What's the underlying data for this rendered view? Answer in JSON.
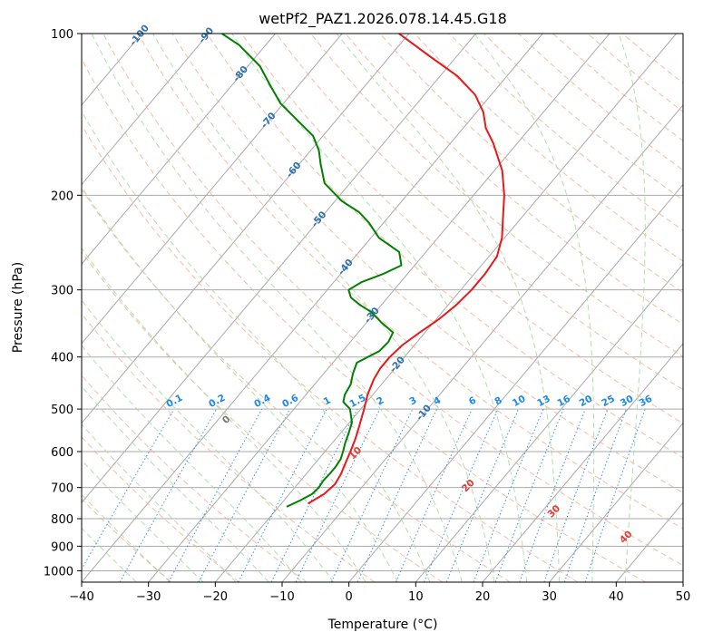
{
  "chart_data": {
    "type": "line",
    "diagram": "skew-t log-p",
    "title": "wetPf2_PAZ1.2026.078.14.45.G18",
    "xlabel": "Temperature (°C)",
    "ylabel": "Pressure (hPa)",
    "xlim": [
      -40,
      50
    ],
    "ylim": [
      1050,
      100
    ],
    "yscale": "log",
    "x_ticks": [
      "−40",
      "−30",
      "−20",
      "−10",
      "0",
      "10",
      "20",
      "30",
      "40",
      "50"
    ],
    "y_ticks": [
      "100",
      "200",
      "300",
      "400",
      "500",
      "600",
      "700",
      "800",
      "900",
      "1000"
    ],
    "y_tick_values": [
      100,
      200,
      300,
      400,
      500,
      600,
      700,
      800,
      900,
      1000
    ],
    "grid": true,
    "colors": {
      "temperature": "#e31a1c",
      "dewpoint": "#008000",
      "isotherm": "#aaaaaa",
      "dry_adiabat": "#f4a582",
      "moist_adiabat": "#a6d8a0",
      "mixing_ratio": "#1e88e5",
      "moist_label": "#e53935",
      "isotherm_label": "#2a6fb0",
      "zero_label": "#777777"
    },
    "series": [
      {
        "key": "temperature",
        "points": [
          [
            750,
            -16.0
          ],
          [
            720,
            -14.8
          ],
          [
            690,
            -14.4
          ],
          [
            660,
            -14.8
          ],
          [
            630,
            -15.5
          ],
          [
            600,
            -16.2
          ],
          [
            570,
            -17.0
          ],
          [
            540,
            -18.0
          ],
          [
            500,
            -19.5
          ],
          [
            470,
            -20.8
          ],
          [
            440,
            -21.8
          ],
          [
            420,
            -22.2
          ],
          [
            400,
            -22.2
          ],
          [
            380,
            -21.8
          ],
          [
            360,
            -20.8
          ],
          [
            340,
            -19.6
          ],
          [
            320,
            -18.8
          ],
          [
            300,
            -18.4
          ],
          [
            280,
            -18.4
          ],
          [
            260,
            -18.8
          ],
          [
            240,
            -20.4
          ],
          [
            220,
            -22.8
          ],
          [
            200,
            -25.4
          ],
          [
            180,
            -28.8
          ],
          [
            160,
            -33.6
          ],
          [
            150,
            -36.6
          ],
          [
            140,
            -39.0
          ],
          [
            130,
            -42.4
          ],
          [
            120,
            -47.4
          ],
          [
            110,
            -54.2
          ],
          [
            100,
            -61.5
          ]
        ]
      },
      {
        "key": "dewpoint",
        "points": [
          [
            760,
            -18.8
          ],
          [
            740,
            -17.6
          ],
          [
            720,
            -16.6
          ],
          [
            700,
            -16.4
          ],
          [
            680,
            -16.6
          ],
          [
            660,
            -16.5
          ],
          [
            640,
            -16.5
          ],
          [
            620,
            -16.7
          ],
          [
            600,
            -17.3
          ],
          [
            580,
            -18.0
          ],
          [
            560,
            -18.6
          ],
          [
            530,
            -19.6
          ],
          [
            500,
            -21.6
          ],
          [
            485,
            -23.5
          ],
          [
            470,
            -24.2
          ],
          [
            450,
            -24.6
          ],
          [
            430,
            -25.6
          ],
          [
            410,
            -26.4
          ],
          [
            400,
            -25.5
          ],
          [
            390,
            -24.5
          ],
          [
            375,
            -24.3
          ],
          [
            360,
            -24.8
          ],
          [
            345,
            -27.8
          ],
          [
            330,
            -30.6
          ],
          [
            320,
            -33.2
          ],
          [
            310,
            -35.5
          ],
          [
            300,
            -36.8
          ],
          [
            290,
            -35.8
          ],
          [
            280,
            -33.6
          ],
          [
            270,
            -32.0
          ],
          [
            255,
            -34.0
          ],
          [
            240,
            -38.8
          ],
          [
            225,
            -42.2
          ],
          [
            215,
            -45.0
          ],
          [
            205,
            -49.0
          ],
          [
            190,
            -53.8
          ],
          [
            175,
            -56.8
          ],
          [
            165,
            -58.8
          ],
          [
            155,
            -61.5
          ],
          [
            145,
            -65.8
          ],
          [
            135,
            -70.4
          ],
          [
            125,
            -74.2
          ],
          [
            115,
            -78.2
          ],
          [
            105,
            -84.0
          ],
          [
            100,
            -88.0
          ]
        ]
      }
    ],
    "isotherm_labels": [
      "-100",
      "-90",
      "-80",
      "-70",
      "-60",
      "-50",
      "-40",
      "-30",
      "-20",
      "-10"
    ],
    "isotherm_label_values": [
      -100,
      -90,
      -80,
      -70,
      -60,
      -50,
      -40,
      -30,
      -20,
      -10
    ],
    "mixing_ratio_labels": [
      "0.1",
      "0.2",
      "0.4",
      "0.6",
      "1",
      "1.5",
      "2",
      "3",
      "4",
      "6",
      "8",
      "10",
      "13",
      "16",
      "20",
      "25",
      "30",
      "36"
    ],
    "mixing_ratio_values": [
      0.1,
      0.2,
      0.4,
      0.6,
      1,
      1.5,
      2,
      3,
      4,
      6,
      8,
      10,
      13,
      16,
      20,
      25,
      30,
      36
    ],
    "moist_adiabat_labels": [
      "0",
      "10",
      "20",
      "30",
      "40"
    ],
    "moist_adiabat_values": [
      0,
      10,
      20,
      30,
      40
    ]
  }
}
